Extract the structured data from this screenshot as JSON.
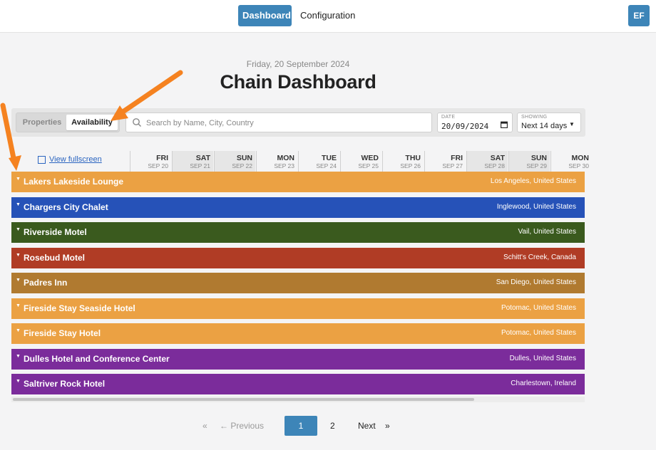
{
  "nav": {
    "dashboard": "Dashboard",
    "configuration": "Configuration",
    "avatar_initials": "EF"
  },
  "header": {
    "date": "Friday, 20 September 2024",
    "title": "Chain Dashboard"
  },
  "toolbar": {
    "toggle_properties": "Properties",
    "toggle_availability": "Availability",
    "search_placeholder": "Search by Name, City, Country",
    "date_label": "DATE",
    "date_value": "20/09/2024",
    "showing_label": "SHOWING",
    "showing_value": "Next 14 days"
  },
  "grid": {
    "view_fullscreen": "View fullscreen",
    "days": [
      {
        "name": "FRI",
        "date": "SEP 20",
        "weekend": false
      },
      {
        "name": "SAT",
        "date": "SEP 21",
        "weekend": true
      },
      {
        "name": "SUN",
        "date": "SEP 22",
        "weekend": true
      },
      {
        "name": "MON",
        "date": "SEP 23",
        "weekend": false
      },
      {
        "name": "TUE",
        "date": "SEP 24",
        "weekend": false
      },
      {
        "name": "WED",
        "date": "SEP 25",
        "weekend": false
      },
      {
        "name": "THU",
        "date": "SEP 26",
        "weekend": false
      },
      {
        "name": "FRI",
        "date": "SEP 27",
        "weekend": false
      },
      {
        "name": "SAT",
        "date": "SEP 28",
        "weekend": true
      },
      {
        "name": "SUN",
        "date": "SEP 29",
        "weekend": true
      },
      {
        "name": "MON",
        "date": "SEP 30",
        "weekend": false
      }
    ],
    "hotels": [
      {
        "name": "Lakers Lakeside Lounge",
        "location": "Los Angeles, United States",
        "color": "#eba143"
      },
      {
        "name": "Chargers City Chalet",
        "location": "Inglewood, United States",
        "color": "#2652b8"
      },
      {
        "name": "Riverside Motel",
        "location": "Vail, United States",
        "color": "#3a5a1e"
      },
      {
        "name": "Rosebud Motel",
        "location": "Schitt's Creek, Canada",
        "color": "#b03c25"
      },
      {
        "name": "Padres Inn",
        "location": "San Diego, United States",
        "color": "#b07a30"
      },
      {
        "name": "Fireside Stay Seaside Hotel",
        "location": "Potomac, United States",
        "color": "#eba143"
      },
      {
        "name": "Fireside Stay Hotel",
        "location": "Potomac, United States",
        "color": "#eba143"
      },
      {
        "name": "Dulles Hotel and Conference Center",
        "location": "Dulles, United States",
        "color": "#7b2c9b"
      },
      {
        "name": "Saltriver Rock Hotel",
        "location": "Charlestown, Ireland",
        "color": "#7b2c9b"
      }
    ]
  },
  "pagination": {
    "first": "«",
    "previous": "← Previous",
    "page1": "1",
    "page2": "2",
    "next": "Next",
    "last": "»"
  },
  "annotation_color": "#f58220"
}
